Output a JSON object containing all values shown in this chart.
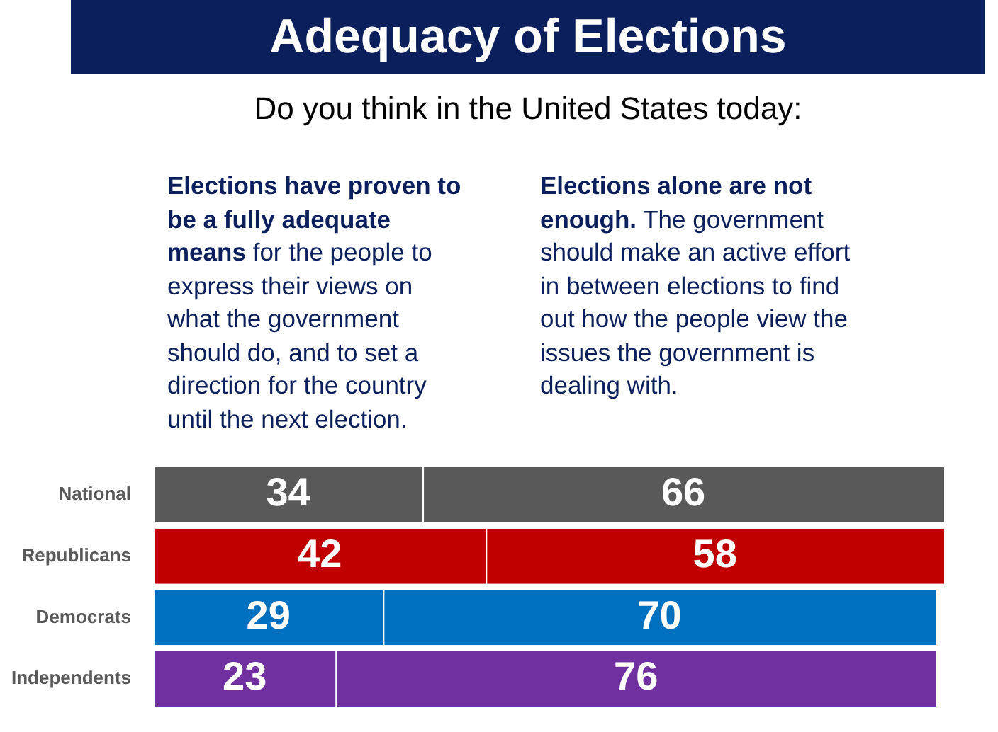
{
  "chart_data": {
    "type": "bar",
    "orientation": "horizontal",
    "stacked": true,
    "title": "Adequacy of Elections",
    "subtitle": "Do you think in the United States today:",
    "annotations": [
      "Elections have proven to be a fully adequate means",
      "for the people to express their views on what the government should do, and to set a direction for the country until the next election.",
      "Elections alone are not enough.",
      "The government should make an active effort in between elections to find out how the people view the issues the government is dealing with."
    ],
    "categories": [
      "National",
      "Republicans",
      "Democrats",
      "Independents"
    ],
    "series": [
      {
        "colors": [
          "#595959",
          "#c00000",
          "#0070c0",
          "#7030a0"
        ],
        "values": [
          34,
          42,
          29,
          23
        ]
      },
      {
        "colors": [
          "#595959",
          "#c00000",
          "#0070c0",
          "#7030a0"
        ],
        "values": [
          66,
          58,
          70,
          76
        ]
      }
    ],
    "xlim": [
      0,
      100
    ],
    "tick_labels": "y",
    "data_labels": true,
    "legend": false
  }
}
